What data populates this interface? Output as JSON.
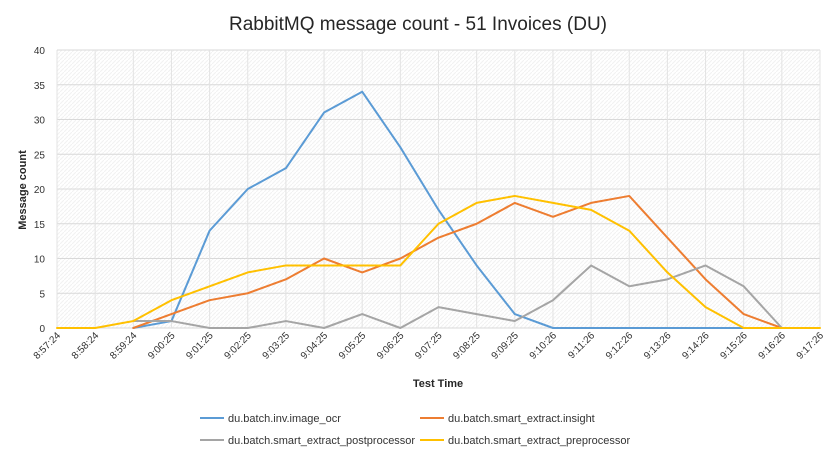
{
  "chart_data": {
    "type": "line",
    "title": "RabbitMQ message count - 51 Invoices (DU)",
    "xlabel": "Test Time",
    "ylabel": "Message count",
    "ylim": [
      0,
      40
    ],
    "yticks": [
      0,
      5,
      10,
      15,
      20,
      25,
      30,
      35,
      40
    ],
    "grid": true,
    "legend_position": "bottom",
    "categories": [
      "8:57:24",
      "8:58:24",
      "8:59:24",
      "9:00:25",
      "9:01:25",
      "9:02:25",
      "9:03:25",
      "9:04:25",
      "9:05:25",
      "9:06:25",
      "9:07:25",
      "9:08:25",
      "9:09:25",
      "9:10:26",
      "9:11:26",
      "9:12:26",
      "9:13:26",
      "9:14:26",
      "9:15:26",
      "9:16:26",
      "9:17:26"
    ],
    "series": [
      {
        "name": "du.batch.inv.image_ocr",
        "color": "#5B9BD5",
        "values": [
          null,
          null,
          0,
          1,
          14,
          20,
          23,
          31,
          34,
          26,
          17,
          9,
          2,
          0,
          0,
          0,
          0,
          0,
          0,
          null,
          null
        ]
      },
      {
        "name": "du.batch.smart_extract.insight",
        "color": "#ED7D31",
        "values": [
          null,
          null,
          0,
          2,
          4,
          5,
          7,
          10,
          8,
          10,
          13,
          15,
          18,
          16,
          18,
          19,
          13,
          7,
          2,
          0,
          null
        ]
      },
      {
        "name": "du.batch.smart_extract_postprocessor",
        "color": "#A5A5A5",
        "values": [
          null,
          null,
          1,
          1,
          0,
          0,
          1,
          0,
          2,
          0,
          3,
          2,
          1,
          4,
          9,
          6,
          7,
          9,
          6,
          0,
          null
        ]
      },
      {
        "name": "du.batch.smart_extract_preprocessor",
        "color": "#FFC000",
        "values": [
          0,
          0,
          1,
          4,
          6,
          8,
          9,
          9,
          9,
          9,
          15,
          18,
          19,
          18,
          17,
          14,
          8,
          3,
          0,
          0,
          0
        ]
      }
    ]
  }
}
